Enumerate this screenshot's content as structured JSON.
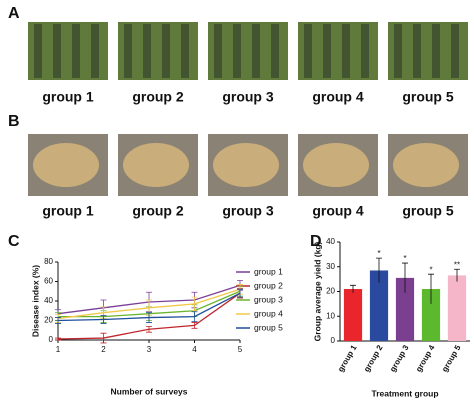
{
  "panels": {
    "A": {
      "label": "A",
      "captions": [
        "group 1",
        "group 2",
        "group 3",
        "group 4",
        "group 5"
      ]
    },
    "B": {
      "label": "B",
      "captions": [
        "group 1",
        "group 2",
        "group 3",
        "group 4",
        "group 5"
      ]
    },
    "C": {
      "label": "C"
    },
    "D": {
      "label": "D"
    }
  },
  "chart_data": [
    {
      "type": "line",
      "x_label": "Number of surveys",
      "y_label": "Disease index (%)",
      "x": [
        1,
        2,
        3,
        4,
        5
      ],
      "xlim": [
        1,
        5
      ],
      "xticks": [
        1,
        2,
        3,
        4,
        5
      ],
      "ylim": [
        0,
        80
      ],
      "yticks": [
        0,
        20,
        40,
        60,
        80
      ],
      "series": [
        {
          "name": "group 1",
          "color": "#7b3f9a",
          "values": [
            27,
            33,
            39,
            41,
            56
          ],
          "errors": [
            4,
            8,
            10,
            8,
            5
          ]
        },
        {
          "name": "group 2",
          "color": "#c0272d",
          "values": [
            1,
            2,
            11,
            15,
            48
          ],
          "errors": [
            1,
            5,
            3,
            3,
            5
          ]
        },
        {
          "name": "group 3",
          "color": "#6ab42d",
          "values": [
            24,
            24,
            27,
            30,
            50
          ],
          "errors": [
            4,
            6,
            7,
            6,
            5
          ]
        },
        {
          "name": "group 4",
          "color": "#f2c94c",
          "values": [
            22,
            28,
            33,
            37,
            52
          ],
          "errors": [
            4,
            6,
            8,
            7,
            5
          ]
        },
        {
          "name": "group 5",
          "color": "#1f4e9a",
          "values": [
            20,
            21,
            23,
            24,
            48
          ],
          "errors": [
            3,
            4,
            5,
            5,
            4
          ]
        }
      ]
    },
    {
      "type": "bar",
      "x_label": "Treatment group",
      "y_label": "Group average yield (kg)",
      "categories": [
        "group 1",
        "group 2",
        "group 3",
        "group 4",
        "group 5"
      ],
      "values": [
        21,
        28.5,
        25.5,
        21,
        26.5
      ],
      "errors": [
        1.5,
        5,
        6,
        6,
        2.5
      ],
      "colors": [
        "#e8262b",
        "#2a4aa0",
        "#7b3f8f",
        "#5cb82d",
        "#f4b6c8"
      ],
      "annotations": [
        null,
        "*",
        "*",
        "*",
        "**"
      ],
      "ylim": [
        0,
        40
      ],
      "yticks": [
        0,
        10,
        20,
        30,
        40
      ]
    }
  ]
}
